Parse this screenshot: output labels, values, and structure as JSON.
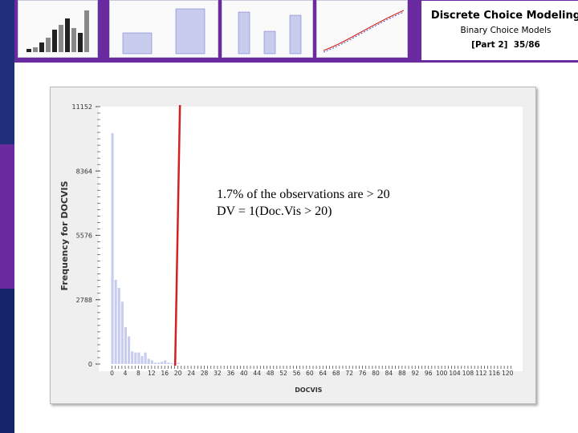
{
  "header": {
    "title": "Discrete Choice Modeling",
    "subtitle": "Binary Choice Models",
    "part": "[Part 2]",
    "page": "35/86"
  },
  "annotation": {
    "line1": "1.7% of the observations are > 20",
    "line2": "DV = 1(Doc.Vis > 20)"
  },
  "colors": {
    "bar": "#c8cdf0",
    "threshold_line": "#d42020",
    "header_band": "#6a2aa0",
    "stripe_dark": "#1f2f7a"
  },
  "chart_data": {
    "type": "bar",
    "title": "",
    "xlabel": "DOCVIS",
    "ylabel": "Frequency for DOCVIS",
    "ylim": [
      0,
      11152
    ],
    "yticks": [
      "0",
      "2788",
      "5576",
      "8364",
      "11152"
    ],
    "xticks": [
      "0",
      "4",
      "8",
      "12",
      "16",
      "20",
      "24",
      "28",
      "32",
      "36",
      "40",
      "44",
      "48",
      "52",
      "56",
      "60",
      "64",
      "68",
      "72",
      "76",
      "80",
      "84",
      "88",
      "92",
      "96",
      "100",
      "104",
      "108",
      "112",
      "116",
      "120"
    ],
    "x": [
      0,
      1,
      2,
      3,
      4,
      5,
      6,
      7,
      8,
      9,
      10,
      11,
      12,
      13,
      14,
      15,
      16,
      17,
      18,
      19,
      20
    ],
    "values": [
      10000,
      3650,
      3300,
      2700,
      1600,
      1200,
      550,
      500,
      500,
      350,
      500,
      230,
      160,
      60,
      60,
      100,
      160,
      60,
      40,
      30,
      50
    ],
    "threshold_x": 20.5,
    "grid": false
  }
}
